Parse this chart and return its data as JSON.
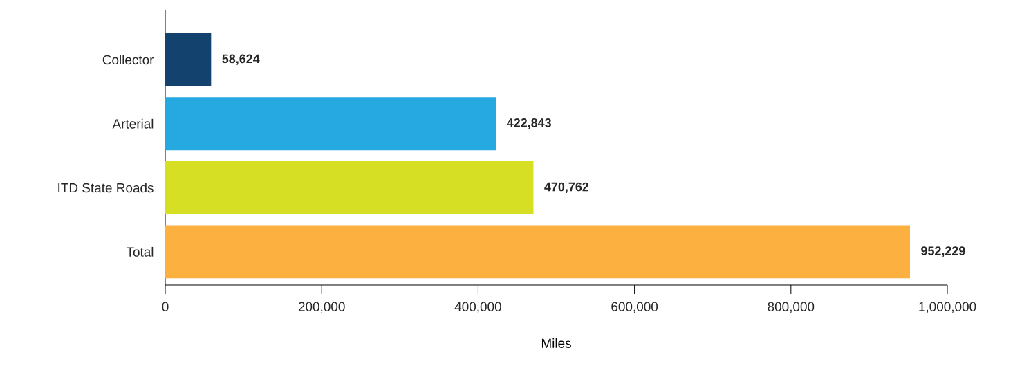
{
  "chart_data": {
    "type": "bar",
    "orientation": "horizontal",
    "xlabel": "Miles",
    "categories": [
      "Collector",
      "Arterial",
      "ITD State Roads",
      "Total"
    ],
    "values": [
      58624,
      422843,
      470762,
      952229
    ],
    "colors": [
      "#13426f",
      "#25a9e0",
      "#d6df23",
      "#fbb040"
    ],
    "value_labels": [
      "58,624",
      "422,843",
      "470,762",
      "952,229"
    ],
    "xlim": [
      0,
      1000000
    ],
    "xticks": [
      0,
      {
        "value": 200000,
        "label": "200,000"
      },
      {
        "value": 400000,
        "label": "400,000"
      },
      {
        "value": 600000,
        "label": "600,000"
      },
      {
        "value": 800000,
        "label": "800,000"
      },
      {
        "value": 1000000,
        "label": "1,000,000"
      }
    ]
  }
}
